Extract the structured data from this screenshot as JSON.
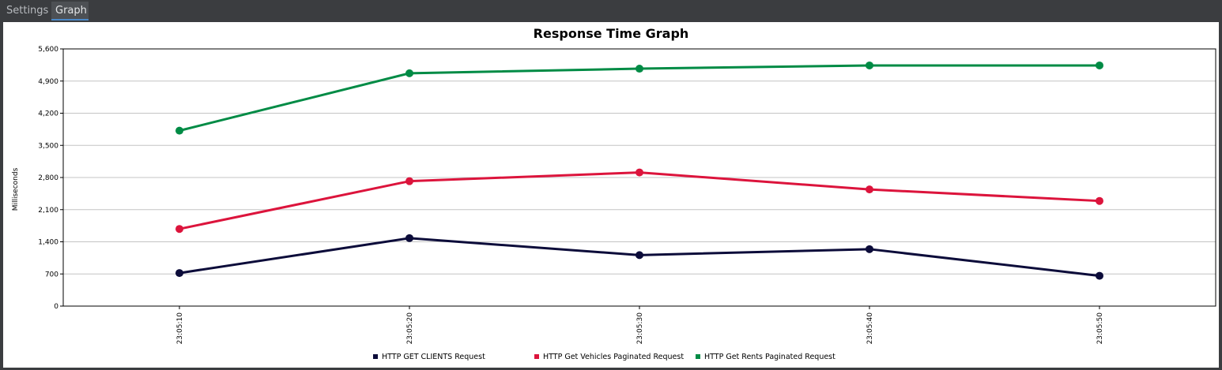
{
  "tabs": [
    {
      "label": "Settings"
    },
    {
      "label": "Graph"
    }
  ],
  "chart_data": {
    "type": "line",
    "title": "Response Time Graph",
    "ylabel": "Milliseconds",
    "xlabel": "",
    "ylim": [
      0,
      5600
    ],
    "yticks": [
      "0",
      "700",
      "1,400",
      "2,100",
      "2,800",
      "3,500",
      "4,200",
      "4,900",
      "5,600"
    ],
    "ytick_values": [
      0,
      700,
      1400,
      2100,
      2800,
      3500,
      4200,
      4900,
      5600
    ],
    "x": [
      "23:05:10",
      "23:05:20",
      "23:05:30",
      "23:05:40",
      "23:05:50"
    ],
    "grid": true,
    "legend": "bottom",
    "series": [
      {
        "name": "HTTP GET CLIENTS Request",
        "color": "#0c0c3a",
        "values": [
          720,
          1480,
          1110,
          1240,
          660
        ]
      },
      {
        "name": "HTTP Get Vehicles Paginated Request",
        "color": "#dc143c",
        "values": [
          1680,
          2720,
          2910,
          2540,
          2290
        ]
      },
      {
        "name": "HTTP Get Rents Paginated Request",
        "color": "#008b45",
        "values": [
          3820,
          5070,
          5170,
          5240,
          5240
        ]
      }
    ]
  }
}
